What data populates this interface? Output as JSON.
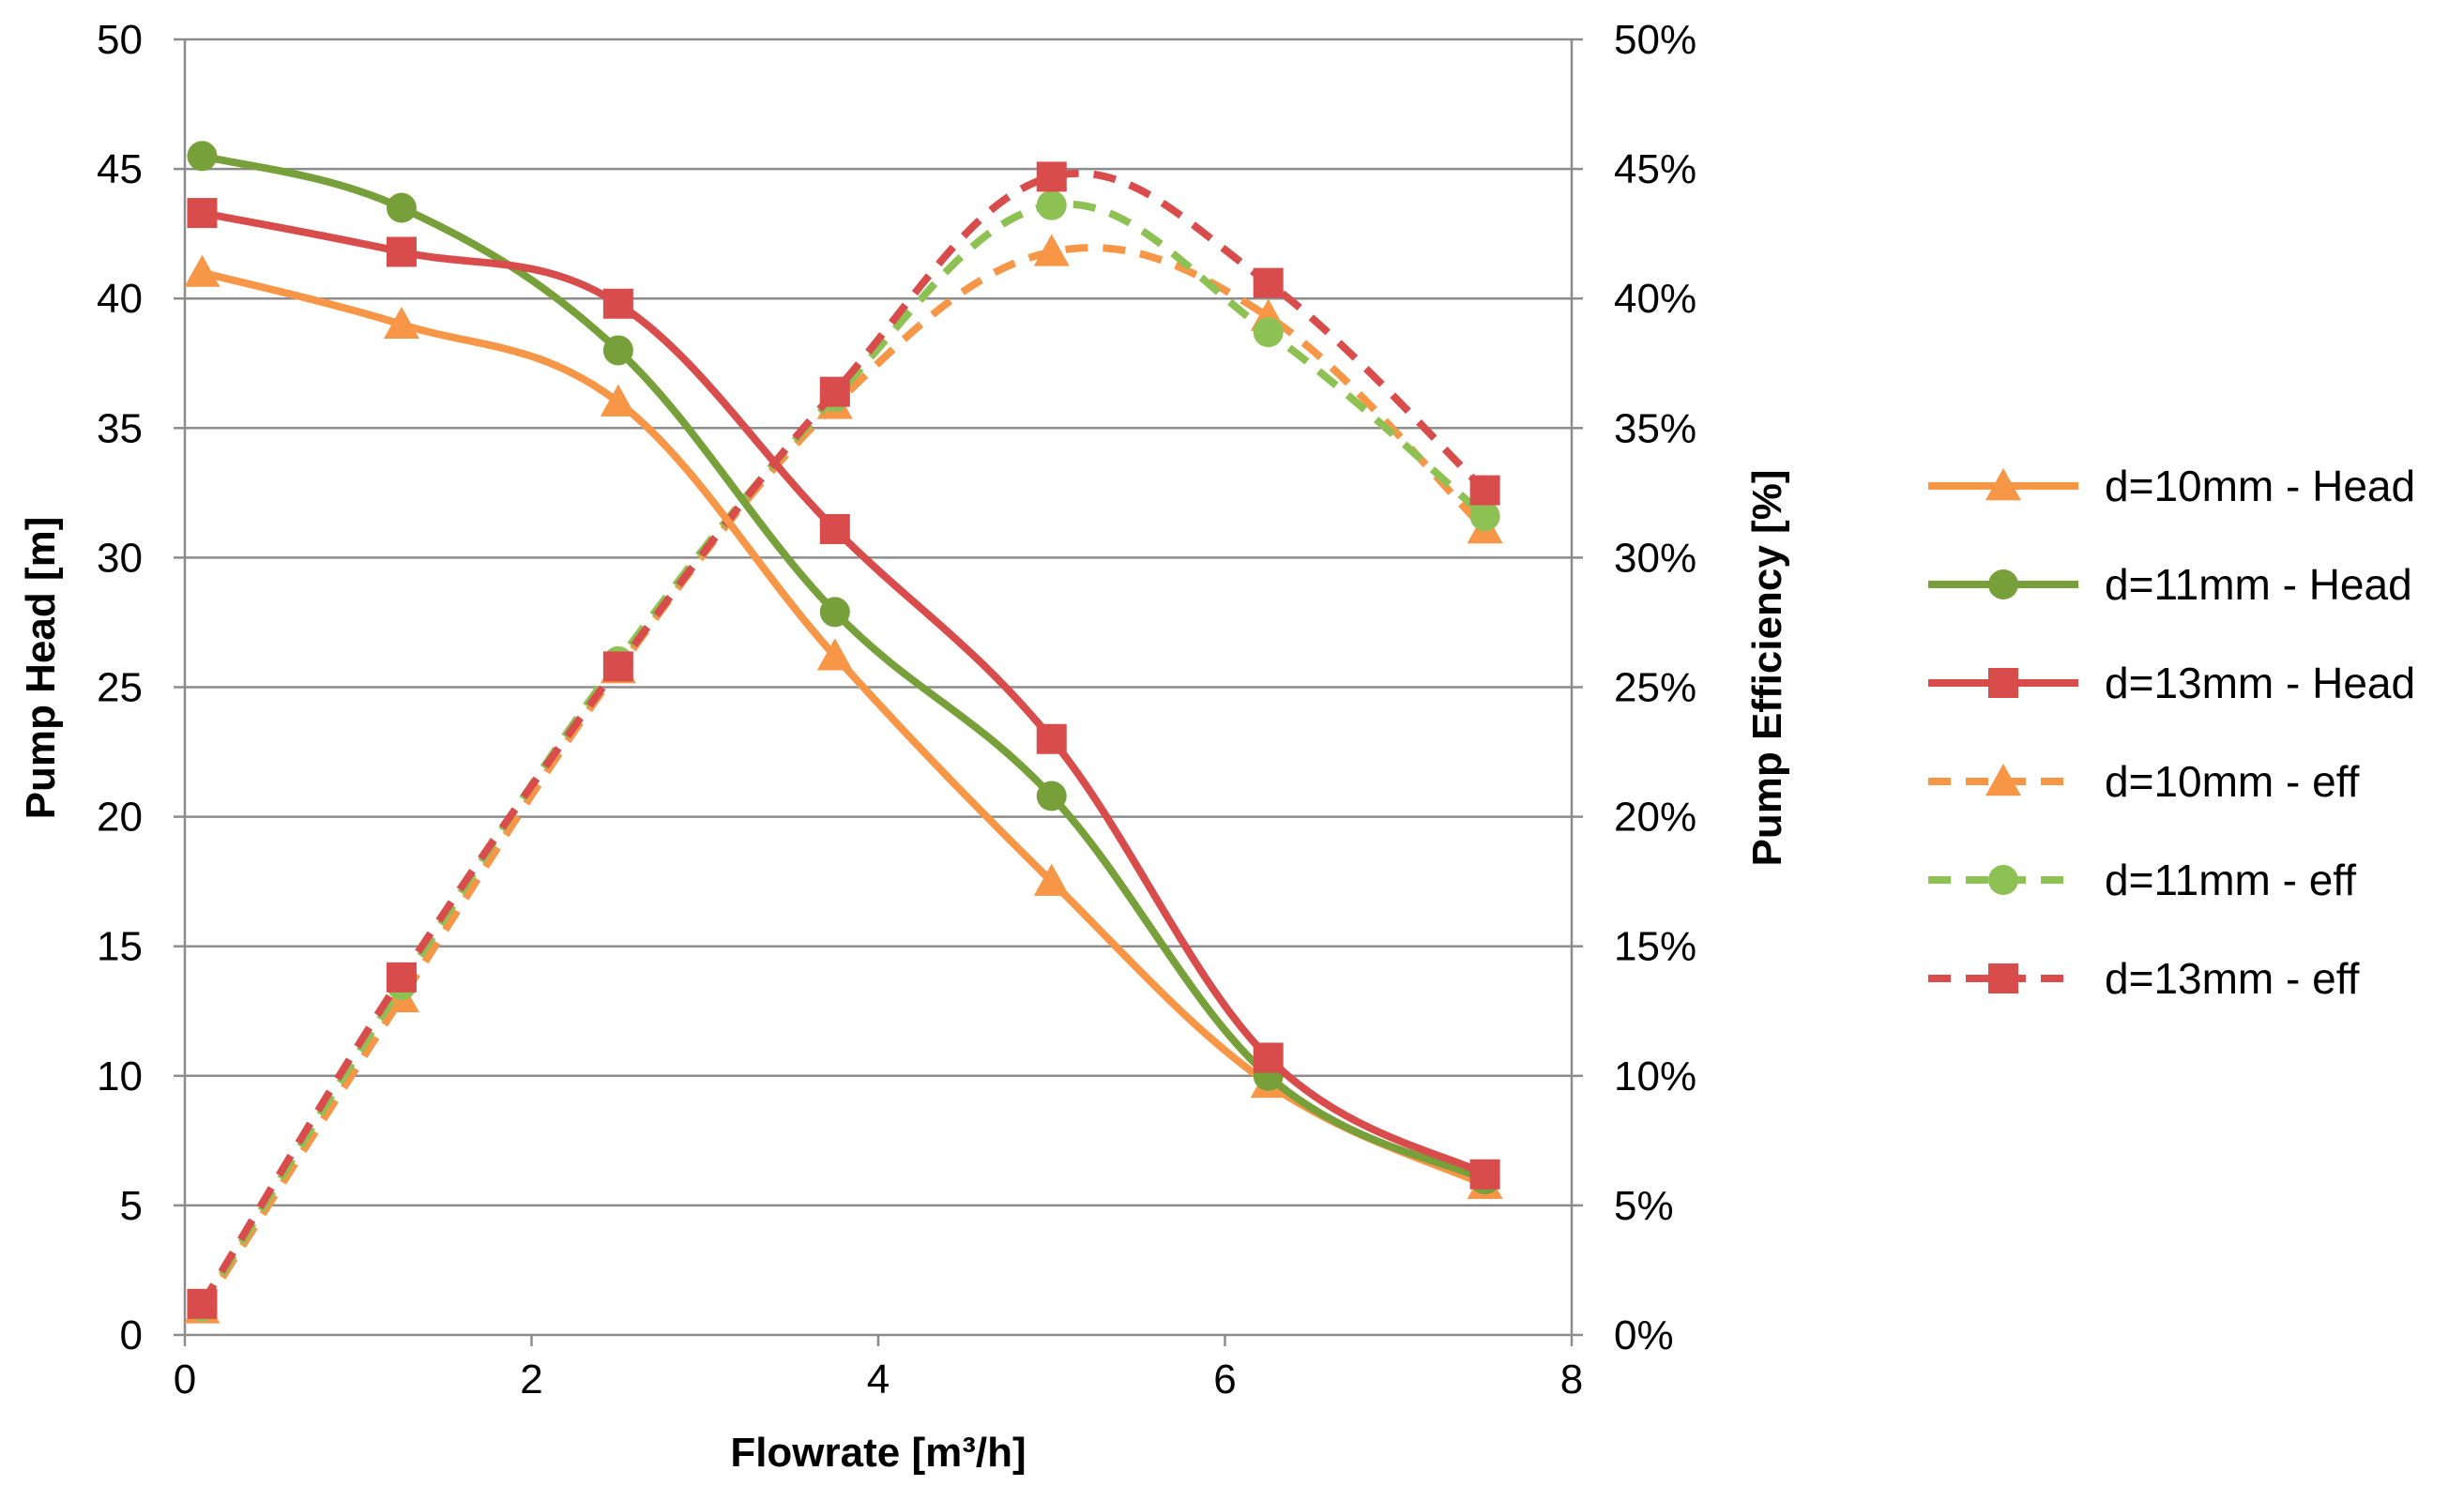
{
  "chart_data": {
    "type": "line",
    "title": "",
    "xlabel": "Flowrate [m³/h]",
    "ylabel": "Pump Head [m]",
    "y2label": "Pump Efficiency [%]",
    "xlim": [
      0,
      8
    ],
    "ylim": [
      0,
      50
    ],
    "y2lim": [
      0,
      50
    ],
    "x_ticks": [
      "0",
      "2",
      "4",
      "6",
      "8"
    ],
    "y_ticks": [
      "0",
      "5",
      "10",
      "15",
      "20",
      "25",
      "30",
      "35",
      "40",
      "45",
      "50"
    ],
    "y2_ticks": [
      "0%",
      "5%",
      "10%",
      "15%",
      "20%",
      "25%",
      "30%",
      "35%",
      "40%",
      "45%",
      "50%"
    ],
    "grid": true,
    "legend_position": "right",
    "x": [
      0.1,
      1.25,
      2.5,
      3.75,
      5.0,
      6.25,
      7.5
    ],
    "series": [
      {
        "name": "d=10mm - Head",
        "axis": "left",
        "style": "solid",
        "marker": "triangle",
        "color": "#F79646",
        "values": [
          41.0,
          39.0,
          36.0,
          26.2,
          17.5,
          9.7,
          5.8
        ]
      },
      {
        "name": "d=11mm - Head",
        "axis": "left",
        "style": "solid",
        "marker": "circle",
        "color": "#77A03A",
        "values": [
          45.5,
          43.5,
          38.0,
          27.9,
          20.8,
          10.0,
          6.0
        ]
      },
      {
        "name": "d=13mm - Head",
        "axis": "left",
        "style": "solid",
        "marker": "square",
        "color": "#D94C4C",
        "values": [
          43.3,
          41.8,
          39.8,
          31.1,
          23.0,
          10.7,
          6.2
        ]
      },
      {
        "name": "d=10mm - eff",
        "axis": "right",
        "style": "dashed",
        "marker": "triangle",
        "color": "#F79646",
        "values": [
          1.0,
          13.0,
          25.7,
          35.9,
          41.8,
          39.3,
          31.1
        ]
      },
      {
        "name": "d=11mm - eff",
        "axis": "right",
        "style": "dashed",
        "marker": "circle",
        "color": "#8DC153",
        "values": [
          1.1,
          13.5,
          26.0,
          36.2,
          43.6,
          38.7,
          31.6
        ]
      },
      {
        "name": "d=13mm - eff",
        "axis": "right",
        "style": "dashed",
        "marker": "square",
        "color": "#D94C4C",
        "values": [
          1.2,
          13.8,
          25.8,
          36.4,
          44.7,
          40.6,
          32.6
        ]
      }
    ]
  }
}
